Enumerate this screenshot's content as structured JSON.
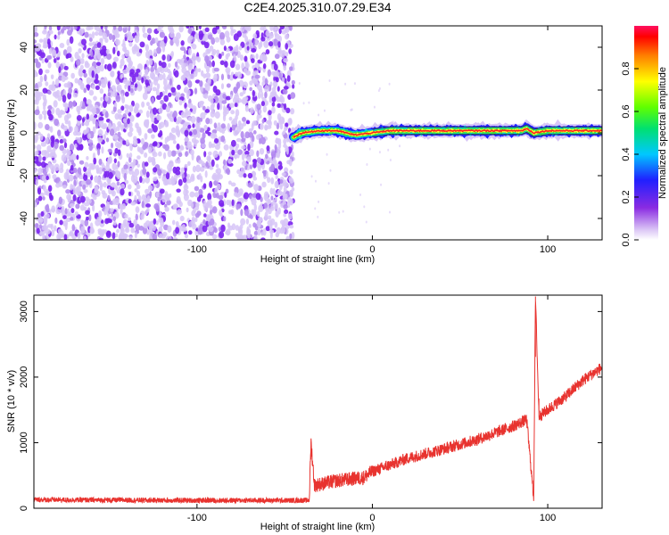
{
  "title": "C2E4.2025.310.07.29.E34",
  "colors": {
    "snr_line": "#e8332f",
    "strong_speckle": "#7a22ee",
    "faint_speckle": "#d7c6f7"
  },
  "chart_data": [
    {
      "type": "heatmap",
      "title": "C2E4.2025.310.07.29.E34",
      "xlabel": "Height of straight line (km)",
      "ylabel": "Frequency (Hz)",
      "xlim": [
        -193,
        131
      ],
      "ylim": [
        -50,
        50
      ],
      "xticks": [
        -100,
        0,
        100
      ],
      "yticks": [
        -40,
        -20,
        0,
        20,
        40
      ],
      "colorbar": {
        "label": "Normalized spectral amplitude",
        "range": [
          0,
          1
        ],
        "ticks": [
          "0.0",
          "0.2",
          "0.4",
          "0.6",
          "0.8"
        ],
        "colormap": "rainbow (violet → blue → cyan → green → yellow → orange → red)"
      },
      "features": {
        "noise_region_x": [
          -193,
          -45
        ],
        "noise_amplitude": "low (~0.0–0.1, violet speckle across -50..50 Hz)",
        "signal_band_start_x": -45,
        "signal_band": [
          {
            "x": -45,
            "y": -2
          },
          {
            "x": -40,
            "y": 0
          },
          {
            "x": -30,
            "y": 1
          },
          {
            "x": -20,
            "y": 1
          },
          {
            "x": -15,
            "y": 0
          },
          {
            "x": -10,
            "y": -1
          },
          {
            "x": 0,
            "y": 0
          },
          {
            "x": 10,
            "y": 1
          },
          {
            "x": 40,
            "y": 1
          },
          {
            "x": 85,
            "y": 1
          },
          {
            "x": 88,
            "y": 2
          },
          {
            "x": 92,
            "y": 0
          },
          {
            "x": 100,
            "y": 1
          },
          {
            "x": 131,
            "y": 1
          }
        ],
        "signal_amplitude": "high (~0.9–1.0 at band center)"
      }
    },
    {
      "type": "line",
      "xlabel": "Height of straight line (km)",
      "ylabel": "SNR (10 * v/v)",
      "xlim": [
        -193,
        131
      ],
      "ylim": [
        0,
        3250
      ],
      "xticks": [
        -100,
        0,
        100
      ],
      "yticks": [
        0,
        1000,
        2000,
        3000
      ],
      "series": [
        {
          "points": [
            {
              "x": -193,
              "y": 130
            },
            {
              "x": -150,
              "y": 125
            },
            {
              "x": -100,
              "y": 120
            },
            {
              "x": -60,
              "y": 120
            },
            {
              "x": -36,
              "y": 120
            },
            {
              "x": -35,
              "y": 1010
            },
            {
              "x": -33,
              "y": 350
            },
            {
              "x": -20,
              "y": 420
            },
            {
              "x": -5,
              "y": 470
            },
            {
              "x": 0,
              "y": 560
            },
            {
              "x": 20,
              "y": 760
            },
            {
              "x": 40,
              "y": 900
            },
            {
              "x": 60,
              "y": 1050
            },
            {
              "x": 80,
              "y": 1250
            },
            {
              "x": 88,
              "y": 1350
            },
            {
              "x": 92,
              "y": 160
            },
            {
              "x": 93,
              "y": 3230
            },
            {
              "x": 95,
              "y": 1400
            },
            {
              "x": 110,
              "y": 1700
            },
            {
              "x": 120,
              "y": 1950
            },
            {
              "x": 131,
              "y": 2150
            }
          ],
          "noise_band": "±100 SNR jitter around the trend"
        }
      ]
    }
  ]
}
